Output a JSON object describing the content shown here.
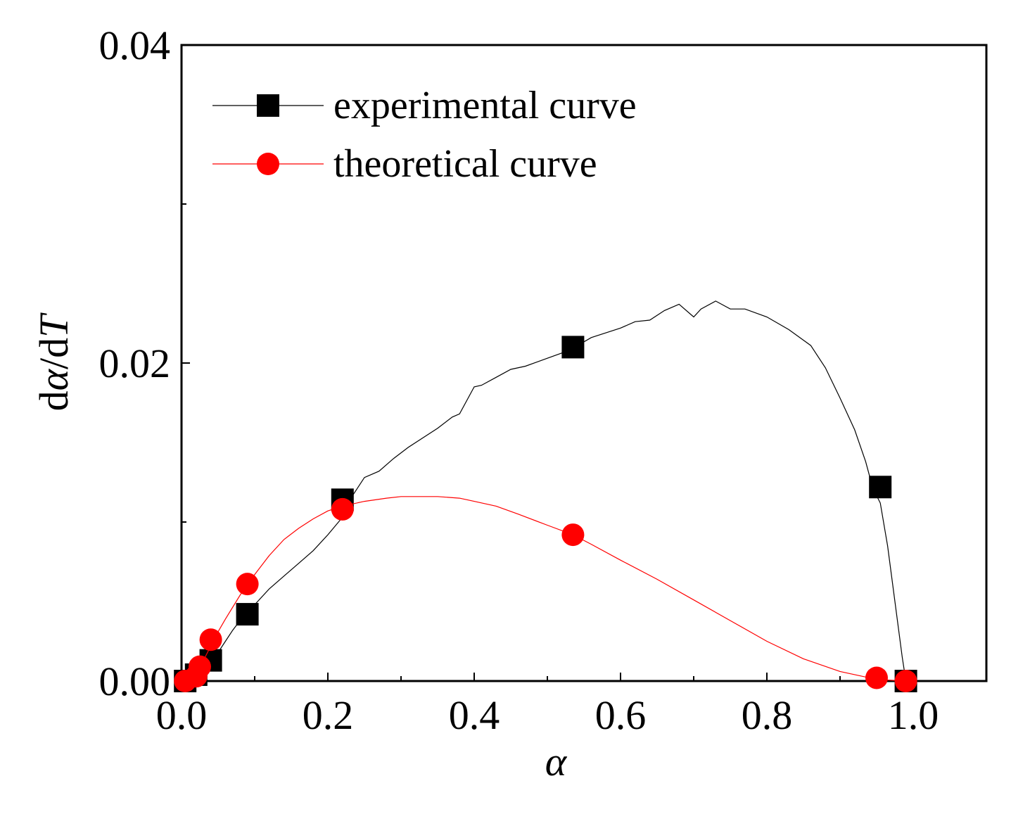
{
  "chart_data": {
    "type": "line",
    "title": "",
    "xlabel": "α",
    "ylabel_parts": [
      "d",
      "α",
      "/d",
      "T"
    ],
    "xlim": [
      0.0,
      1.1
    ],
    "ylim": [
      0.0,
      0.04
    ],
    "xticks": [
      "0.0",
      "0.2",
      "0.4",
      "0.6",
      "0.8",
      "1.0"
    ],
    "yticks": [
      "0.00",
      "0.02",
      "0.04"
    ],
    "xtick_values": [
      0.0,
      0.2,
      0.4,
      0.6,
      0.8,
      1.0
    ],
    "ytick_values": [
      0.0,
      0.02,
      0.04
    ],
    "legend_position": "top-left",
    "series": [
      {
        "name": "experimental curve",
        "color": "#000000",
        "marker": "square",
        "line_points": [
          [
            0.0,
            0.0
          ],
          [
            0.01,
            0.0
          ],
          [
            0.02,
            0.0003
          ],
          [
            0.03,
            0.0008
          ],
          [
            0.04,
            0.0012
          ],
          [
            0.05,
            0.0018
          ],
          [
            0.06,
            0.0025
          ],
          [
            0.07,
            0.0032
          ],
          [
            0.08,
            0.0038
          ],
          [
            0.09,
            0.0042
          ],
          [
            0.1,
            0.0048
          ],
          [
            0.12,
            0.0058
          ],
          [
            0.14,
            0.0066
          ],
          [
            0.16,
            0.0074
          ],
          [
            0.18,
            0.0082
          ],
          [
            0.2,
            0.0092
          ],
          [
            0.22,
            0.0103
          ],
          [
            0.23,
            0.0114
          ],
          [
            0.25,
            0.0128
          ],
          [
            0.27,
            0.0132
          ],
          [
            0.29,
            0.014
          ],
          [
            0.31,
            0.0147
          ],
          [
            0.33,
            0.0153
          ],
          [
            0.35,
            0.0159
          ],
          [
            0.37,
            0.0166
          ],
          [
            0.38,
            0.0168
          ],
          [
            0.4,
            0.0185
          ],
          [
            0.41,
            0.0186
          ],
          [
            0.43,
            0.0191
          ],
          [
            0.45,
            0.0196
          ],
          [
            0.47,
            0.0198
          ],
          [
            0.5,
            0.0203
          ],
          [
            0.53,
            0.0208
          ],
          [
            0.56,
            0.0216
          ],
          [
            0.58,
            0.0219
          ],
          [
            0.6,
            0.0222
          ],
          [
            0.62,
            0.0226
          ],
          [
            0.64,
            0.0227
          ],
          [
            0.66,
            0.0233
          ],
          [
            0.68,
            0.0237
          ],
          [
            0.7,
            0.0229
          ],
          [
            0.71,
            0.0234
          ],
          [
            0.73,
            0.0239
          ],
          [
            0.75,
            0.0234
          ],
          [
            0.77,
            0.0234
          ],
          [
            0.8,
            0.0229
          ],
          [
            0.83,
            0.0221
          ],
          [
            0.86,
            0.0211
          ],
          [
            0.88,
            0.0197
          ],
          [
            0.9,
            0.0178
          ],
          [
            0.92,
            0.0158
          ],
          [
            0.935,
            0.0138
          ],
          [
            0.945,
            0.0121
          ],
          [
            0.955,
            0.0112
          ],
          [
            0.965,
            0.0085
          ],
          [
            0.975,
            0.005
          ],
          [
            0.985,
            0.0015
          ],
          [
            0.99,
            0.0
          ]
        ],
        "marker_points": [
          [
            0.005,
            0.0
          ],
          [
            0.02,
            0.0004
          ],
          [
            0.04,
            0.0013
          ],
          [
            0.09,
            0.0042
          ],
          [
            0.22,
            0.0114
          ],
          [
            0.535,
            0.021
          ],
          [
            0.955,
            0.0122
          ],
          [
            0.99,
            0.0
          ]
        ]
      },
      {
        "name": "theoretical curve",
        "color": "#ff0000",
        "marker": "circle",
        "line_points": [
          [
            0.0,
            0.0
          ],
          [
            0.01,
            0.0002
          ],
          [
            0.02,
            0.0007
          ],
          [
            0.03,
            0.0013
          ],
          [
            0.04,
            0.0022
          ],
          [
            0.05,
            0.0031
          ],
          [
            0.06,
            0.0039
          ],
          [
            0.08,
            0.0054
          ],
          [
            0.1,
            0.0067
          ],
          [
            0.12,
            0.0079
          ],
          [
            0.14,
            0.0089
          ],
          [
            0.16,
            0.0096
          ],
          [
            0.18,
            0.0102
          ],
          [
            0.2,
            0.0107
          ],
          [
            0.22,
            0.011
          ],
          [
            0.25,
            0.0113
          ],
          [
            0.28,
            0.0115
          ],
          [
            0.3,
            0.0116
          ],
          [
            0.32,
            0.0116
          ],
          [
            0.35,
            0.0116
          ],
          [
            0.38,
            0.0115
          ],
          [
            0.4,
            0.0113
          ],
          [
            0.43,
            0.011
          ],
          [
            0.46,
            0.0105
          ],
          [
            0.5,
            0.0098
          ],
          [
            0.535,
            0.0092
          ],
          [
            0.56,
            0.0086
          ],
          [
            0.6,
            0.0076
          ],
          [
            0.65,
            0.0064
          ],
          [
            0.7,
            0.0051
          ],
          [
            0.75,
            0.0038
          ],
          [
            0.8,
            0.0025
          ],
          [
            0.85,
            0.0014
          ],
          [
            0.9,
            0.0006
          ],
          [
            0.95,
            0.0001
          ],
          [
            0.99,
            0.0
          ]
        ],
        "marker_points": [
          [
            0.005,
            0.0
          ],
          [
            0.02,
            0.0003
          ],
          [
            0.025,
            0.0009
          ],
          [
            0.04,
            0.0026
          ],
          [
            0.09,
            0.0061
          ],
          [
            0.22,
            0.0108
          ],
          [
            0.535,
            0.0092
          ],
          [
            0.95,
            0.0002
          ],
          [
            0.99,
            0.0
          ]
        ]
      }
    ]
  }
}
